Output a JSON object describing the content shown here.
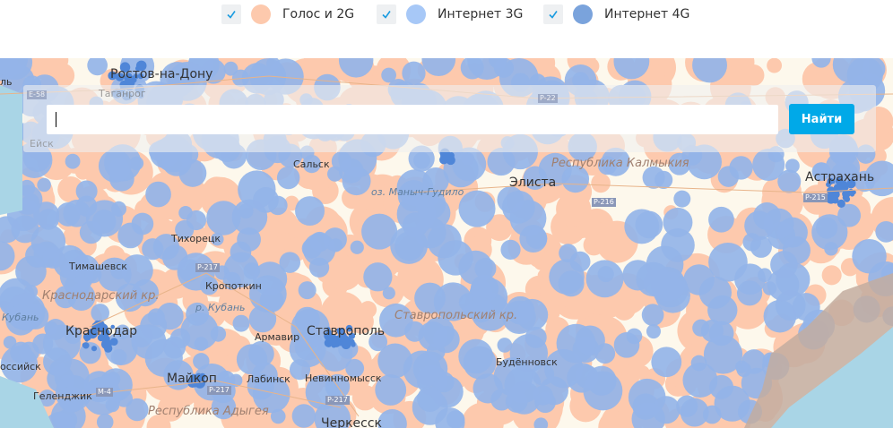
{
  "legend": {
    "items": [
      {
        "label": "Голос и 2G",
        "color": "#fdc9ad",
        "checked": true
      },
      {
        "label": "Интернет 3G",
        "color": "#a7c8f7",
        "checked": true
      },
      {
        "label": "Интернет 4G",
        "color": "#7aa3dc",
        "checked": true
      }
    ],
    "check_color": "#1a9be0"
  },
  "search": {
    "value": "",
    "button_label": "Найти",
    "button_color": "#00a9e8"
  },
  "map": {
    "colors": {
      "land": "#fdf8ec",
      "sea": "#a9d5e6",
      "sand": "#c3ada0",
      "voice": "#fdc9ad",
      "g3": "#94b4e8",
      "g4": "#4f86d8"
    },
    "cities": {
      "rostov": "Ростов-на-Дону",
      "taganrog": "Таганрог",
      "yeysk": "Ейск",
      "salsk": "Сальск",
      "elista": "Элиста",
      "astrakhan": "Астрахань",
      "tikhoretsk": "Тихорецк",
      "timashevsk": "Тимашевск",
      "kropotkin": "Кропоткин",
      "krasnodar": "Краснодар",
      "armavir": "Армавир",
      "stavropol": "Ставрополь",
      "budennovsk": "Будённовск",
      "maykop": "Майкоп",
      "labinsk": "Лабинск",
      "nevinnomyssk": "Невинномысск",
      "gelendzhik": "Геленджик",
      "cherkessk": "Черкесск",
      "novorossiysk": "оссийск",
      "edge_top": "ль"
    },
    "regions": {
      "kalmykia": "Республика Калмыкия",
      "krasnodar_kr": "Краснодарский кр.",
      "stavropol_kr": "Ставропольский кр.",
      "adygea": "Республика Адыгея"
    },
    "water": {
      "manych": "оз. Маныч-Гудило",
      "kuban_river": "р. Кубань",
      "kuban_left": "Кубань"
    },
    "roads": {
      "e58": "E-58",
      "p22": "P-22",
      "p217a": "P-217",
      "p217b": "P-217",
      "p217c": "P-217",
      "m4": "M-4",
      "p216": "P-216",
      "p215": "P-215"
    }
  }
}
